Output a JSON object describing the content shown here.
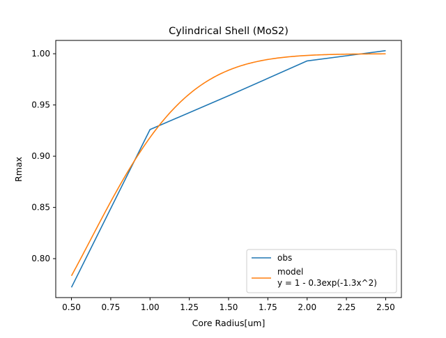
{
  "chart_data": {
    "type": "line",
    "title": "Cylindrical Shell (MoS2)",
    "xlabel": "Core Radius[um]",
    "ylabel": "Rmax",
    "xlim": [
      0.4,
      2.6
    ],
    "ylim": [
      0.762,
      1.013
    ],
    "xticks": [
      0.5,
      0.75,
      1.0,
      1.25,
      1.5,
      1.75,
      2.0,
      2.25,
      2.5
    ],
    "xtick_labels": [
      "0.50",
      "0.75",
      "1.00",
      "1.25",
      "1.50",
      "1.75",
      "2.00",
      "2.25",
      "2.50"
    ],
    "yticks": [
      0.8,
      0.85,
      0.9,
      0.95,
      1.0
    ],
    "ytick_labels": [
      "0.80",
      "0.85",
      "0.90",
      "0.95",
      "1.00"
    ],
    "grid": false,
    "legend_position": "lower-right",
    "series": [
      {
        "name": "obs",
        "color": "#1f77b4",
        "x": [
          0.5,
          1.0,
          1.5,
          2.0,
          2.5
        ],
        "y": [
          0.772,
          0.926,
          0.959,
          0.993,
          1.003
        ]
      },
      {
        "name": "model",
        "legend_lines": [
          "model",
          "y = 1 - 0.3exp(-1.3x^2)"
        ],
        "color": "#ff7f0e",
        "formula": {
          "a": 1,
          "b": 0.3,
          "c": 1.3
        },
        "x_range": [
          0.5,
          2.5
        ]
      }
    ]
  }
}
